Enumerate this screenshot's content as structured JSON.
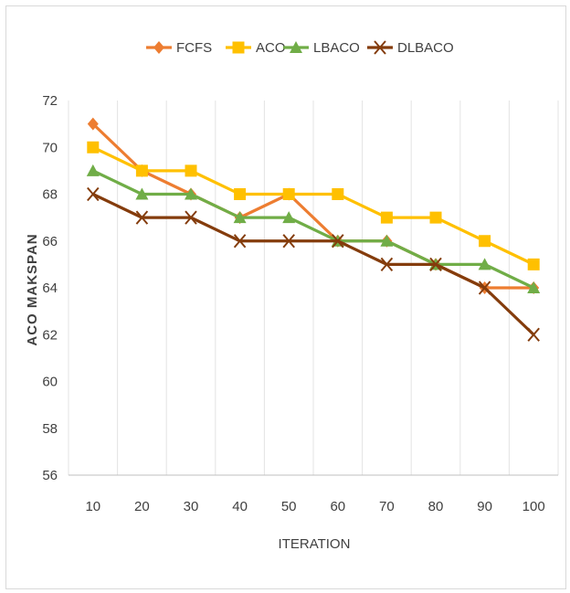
{
  "chart_data": {
    "type": "line",
    "categories": [
      "10",
      "20",
      "30",
      "40",
      "50",
      "60",
      "70",
      "80",
      "90",
      "100"
    ],
    "series": [
      {
        "name": "FCFS",
        "color": "#ed7d31",
        "marker": "diamond",
        "values": [
          71,
          69,
          68,
          67,
          68,
          66,
          66,
          65,
          64,
          64
        ]
      },
      {
        "name": "ACO",
        "color": "#ffc000",
        "marker": "square",
        "values": [
          70,
          69,
          69,
          68,
          68,
          68,
          67,
          67,
          66,
          65
        ]
      },
      {
        "name": "LBACO",
        "color": "#70ad47",
        "marker": "triangle",
        "values": [
          69,
          68,
          68,
          67,
          67,
          66,
          66,
          65,
          65,
          64
        ]
      },
      {
        "name": "DLBACO",
        "color": "#843c0c",
        "marker": "x",
        "values": [
          68,
          67,
          67,
          66,
          66,
          66,
          65,
          65,
          64,
          62
        ]
      }
    ],
    "xlabel": "ITERATION",
    "ylabel": "ACO MAKSPAN",
    "ylim": [
      56,
      72
    ],
    "ytick_step": 2,
    "grid": "vertical",
    "legend": "top"
  }
}
